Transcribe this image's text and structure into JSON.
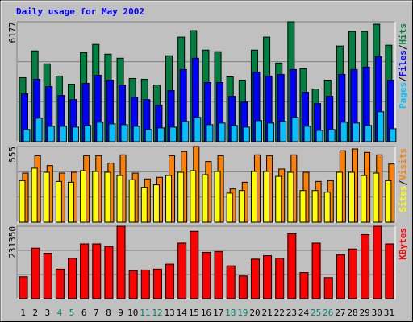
{
  "chart_data": [
    {
      "type": "bar",
      "title": "Daily usage for May 2002",
      "legend_separator": "/",
      "ylim": [
        0,
        6177
      ],
      "yticks": [
        6177
      ],
      "gridlines": [
        2059,
        4118
      ],
      "series": [
        {
          "name": "Hits",
          "color": "#008040",
          "values": [
            3297,
            4675,
            4007,
            3381,
            2963,
            4591,
            5008,
            4508,
            4299,
            3256,
            3214,
            2922,
            4424,
            5384,
            5718,
            4716,
            4633,
            3339,
            3172,
            4716,
            5384,
            4049,
            6177,
            3756,
            2713,
            3172,
            4925,
            5676,
            5676,
            6052,
            4967
          ]
        },
        {
          "name": "Files",
          "color": "#0000ff",
          "values": [
            2462,
            3214,
            2838,
            2379,
            2170,
            3005,
            3422,
            3172,
            2922,
            2296,
            2170,
            1878,
            2629,
            3715,
            4299,
            3047,
            3047,
            2337,
            2045,
            3589,
            3381,
            3464,
            3715,
            2546,
            1962,
            2337,
            3464,
            3715,
            3840,
            4382,
            3172
          ]
        },
        {
          "name": "Pages",
          "color": "#00c0ff",
          "values": [
            626,
            1210,
            793,
            793,
            751,
            835,
            1002,
            918,
            877,
            793,
            626,
            710,
            751,
            1043,
            1252,
            877,
            960,
            835,
            751,
            1085,
            960,
            1043,
            1252,
            793,
            584,
            626,
            1002,
            960,
            835,
            1544,
            668
          ]
        }
      ]
    },
    {
      "type": "bar",
      "legend_separator": "/",
      "ylim": [
        0,
        555
      ],
      "yticks": [
        555
      ],
      "gridlines": [
        185,
        370
      ],
      "series": [
        {
          "name": "Visits",
          "color": "#ff8000",
          "values": [
            360,
            488,
            415,
            360,
            366,
            488,
            488,
            433,
            494,
            360,
            317,
            329,
            488,
            518,
            555,
            445,
            488,
            244,
            293,
            494,
            488,
            390,
            494,
            366,
            299,
            305,
            524,
            537,
            512,
            494,
            427
          ]
        },
        {
          "name": "Sites",
          "color": "#ffff00",
          "values": [
            305,
            396,
            366,
            299,
            293,
            378,
            372,
            366,
            342,
            311,
            256,
            274,
            342,
            366,
            378,
            348,
            372,
            213,
            232,
            372,
            372,
            336,
            366,
            232,
            232,
            220,
            366,
            366,
            342,
            360,
            305
          ]
        }
      ]
    },
    {
      "type": "bar",
      "ylim": [
        0,
        231350
      ],
      "yticks": [
        231350
      ],
      "gridlines": [
        77117,
        154233
      ],
      "categories": [
        "1",
        "2",
        "3",
        "4",
        "5",
        "6",
        "7",
        "8",
        "9",
        "10",
        "11",
        "12",
        "13",
        "14",
        "15",
        "16",
        "17",
        "18",
        "19",
        "20",
        "21",
        "22",
        "23",
        "24",
        "25",
        "26",
        "27",
        "28",
        "29",
        "30",
        "31"
      ],
      "label_colors": [
        "#000000",
        "#000000",
        "#000000",
        "#00806a",
        "#00806a",
        "#000000",
        "#000000",
        "#000000",
        "#000000",
        "#000000",
        "#00806a",
        "#00806a",
        "#000000",
        "#000000",
        "#000000",
        "#000000",
        "#000000",
        "#00806a",
        "#00806a",
        "#000000",
        "#000000",
        "#000000",
        "#000000",
        "#000000",
        "#00806a",
        "#00806a",
        "#000000",
        "#000000",
        "#000000",
        "#000000",
        "#000000"
      ],
      "series": [
        {
          "name": "KBytes",
          "color": "#ff0000",
          "values": [
            69942,
            161407,
            145266,
            94155,
            129126,
            174857,
            174857,
            166787,
            231350,
            88775,
            91465,
            94155,
            110296,
            177547,
            215209,
            147956,
            150646,
            104915,
            72632,
            126436,
            137195,
            129126,
            207139,
            83395,
            177547,
            67253,
            139885,
            158717,
            204449,
            231350,
            174857
          ]
        }
      ]
    }
  ]
}
